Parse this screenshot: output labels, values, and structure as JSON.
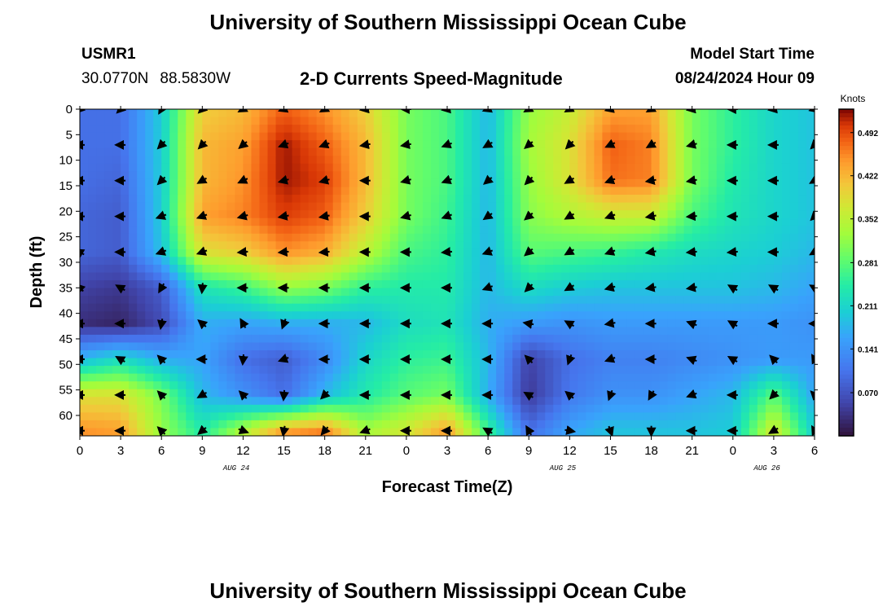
{
  "header": {
    "title": "University of Southern Mississippi Ocean Cube",
    "station": "USMR1",
    "lat": "30.0770N",
    "lon": "88.5830W",
    "subtitle": "2-D Currents Speed-Magnitude",
    "start_label": "Model Start Time",
    "start_value": "08/24/2024 Hour 09"
  },
  "footer": {
    "title": "University of Southern Mississippi Ocean Cube"
  },
  "chart_data": {
    "type": "heatmap",
    "xlabel": "Forecast Time(Z)",
    "ylabel": "Depth (ft)",
    "x_tick_labels": [
      "0",
      "3",
      "6",
      "9",
      "12",
      "15",
      "18",
      "21",
      "0",
      "3",
      "6",
      "9",
      "12",
      "15",
      "18",
      "21",
      "0",
      "3",
      "6"
    ],
    "x_range_hours": [
      0,
      54
    ],
    "date_labels": [
      {
        "label": "AUG 24",
        "hour": 11.5
      },
      {
        "label": "AUG 25",
        "hour": 35.5
      },
      {
        "label": "AUG 26",
        "hour": 50.5
      }
    ],
    "y_ticks": [
      0,
      5,
      10,
      15,
      20,
      25,
      30,
      35,
      40,
      45,
      50,
      55,
      60
    ],
    "y_range": [
      0,
      64
    ],
    "colorbar": {
      "title": "Knots",
      "tick_labels": [
        "0.492",
        "0.422",
        "0.352",
        "0.281",
        "0.211",
        "0.141",
        "0.070"
      ],
      "tick_values": [
        0.492,
        0.422,
        0.352,
        0.281,
        0.211,
        0.141,
        0.07
      ],
      "range": [
        0.0,
        0.53
      ]
    },
    "x_hours": [
      0,
      3,
      6,
      9,
      12,
      15,
      18,
      21,
      24,
      27,
      30,
      33,
      36,
      39,
      42,
      45,
      48,
      51,
      54
    ],
    "depths": [
      0,
      7,
      14,
      21,
      28,
      35,
      42,
      49,
      56,
      63
    ],
    "speed_knots": [
      [
        0.1,
        0.1,
        0.2,
        0.4,
        0.42,
        0.48,
        0.45,
        0.4,
        0.3,
        0.27,
        0.18,
        0.32,
        0.36,
        0.44,
        0.44,
        0.3,
        0.25,
        0.21,
        0.19
      ],
      [
        0.1,
        0.1,
        0.2,
        0.42,
        0.44,
        0.52,
        0.48,
        0.42,
        0.3,
        0.27,
        0.18,
        0.33,
        0.38,
        0.48,
        0.46,
        0.3,
        0.25,
        0.21,
        0.19
      ],
      [
        0.1,
        0.09,
        0.2,
        0.42,
        0.45,
        0.52,
        0.5,
        0.42,
        0.3,
        0.27,
        0.18,
        0.32,
        0.38,
        0.47,
        0.46,
        0.3,
        0.24,
        0.21,
        0.19
      ],
      [
        0.09,
        0.08,
        0.2,
        0.44,
        0.46,
        0.5,
        0.48,
        0.4,
        0.3,
        0.26,
        0.18,
        0.31,
        0.34,
        0.36,
        0.36,
        0.27,
        0.23,
        0.21,
        0.19
      ],
      [
        0.09,
        0.08,
        0.19,
        0.38,
        0.4,
        0.45,
        0.43,
        0.35,
        0.27,
        0.25,
        0.18,
        0.28,
        0.27,
        0.26,
        0.24,
        0.22,
        0.21,
        0.2,
        0.18
      ],
      [
        0.05,
        0.04,
        0.08,
        0.23,
        0.26,
        0.32,
        0.3,
        0.25,
        0.24,
        0.24,
        0.18,
        0.22,
        0.2,
        0.19,
        0.19,
        0.19,
        0.19,
        0.18,
        0.16
      ],
      [
        0.03,
        0.02,
        0.06,
        0.17,
        0.16,
        0.17,
        0.17,
        0.18,
        0.22,
        0.23,
        0.17,
        0.15,
        0.14,
        0.15,
        0.15,
        0.15,
        0.15,
        0.15,
        0.14
      ],
      [
        0.18,
        0.22,
        0.17,
        0.16,
        0.1,
        0.08,
        0.13,
        0.21,
        0.25,
        0.26,
        0.18,
        0.05,
        0.1,
        0.12,
        0.12,
        0.13,
        0.14,
        0.15,
        0.15
      ],
      [
        0.38,
        0.38,
        0.3,
        0.18,
        0.14,
        0.1,
        0.18,
        0.24,
        0.28,
        0.3,
        0.17,
        0.04,
        0.11,
        0.14,
        0.14,
        0.16,
        0.18,
        0.28,
        0.16
      ],
      [
        0.45,
        0.44,
        0.32,
        0.24,
        0.34,
        0.44,
        0.46,
        0.33,
        0.37,
        0.44,
        0.26,
        0.1,
        0.16,
        0.19,
        0.19,
        0.19,
        0.2,
        0.37,
        0.2
      ]
    ],
    "direction_deg": [
      [
        225,
        225,
        210,
        225,
        240,
        250,
        240,
        260,
        270,
        260,
        250,
        240,
        240,
        255,
        240,
        260,
        270,
        260,
        255
      ],
      [
        270,
        270,
        225,
        225,
        230,
        250,
        250,
        260,
        260,
        250,
        240,
        230,
        225,
        245,
        240,
        255,
        270,
        270,
        225
      ],
      [
        270,
        270,
        225,
        240,
        245,
        255,
        255,
        270,
        255,
        250,
        230,
        225,
        240,
        250,
        260,
        260,
        270,
        270,
        240
      ],
      [
        270,
        270,
        250,
        250,
        255,
        260,
        260,
        270,
        255,
        250,
        235,
        230,
        240,
        250,
        260,
        265,
        270,
        270,
        225
      ],
      [
        300,
        270,
        250,
        250,
        265,
        265,
        265,
        270,
        270,
        265,
        250,
        230,
        240,
        250,
        260,
        265,
        265,
        270,
        240
      ],
      [
        315,
        300,
        210,
        185,
        270,
        270,
        270,
        270,
        270,
        270,
        250,
        225,
        240,
        255,
        260,
        260,
        300,
        300,
        300
      ],
      [
        270,
        270,
        190,
        310,
        330,
        200,
        270,
        270,
        270,
        270,
        270,
        280,
        300,
        260,
        270,
        290,
        300,
        270,
        270
      ],
      [
        270,
        300,
        315,
        270,
        185,
        250,
        270,
        270,
        270,
        270,
        270,
        315,
        200,
        250,
        270,
        290,
        300,
        315,
        330
      ],
      [
        270,
        270,
        315,
        240,
        315,
        185,
        225,
        270,
        270,
        270,
        270,
        300,
        310,
        200,
        210,
        250,
        270,
        225,
        315
      ],
      [
        270,
        270,
        315,
        230,
        110,
        190,
        220,
        250,
        270,
        270,
        300,
        330,
        100,
        160,
        180,
        270,
        270,
        240,
        330
      ]
    ]
  }
}
